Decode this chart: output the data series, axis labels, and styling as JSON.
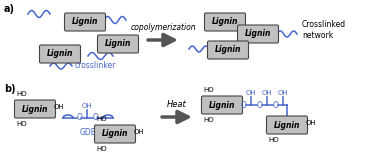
{
  "background_color": "#ffffff",
  "lignin_box_color": "#c0c0c0",
  "lignin_box_edge": "#444444",
  "lignin_text_color": "#000000",
  "blue_color": "#4466cc",
  "black": "#000000",
  "section_a_label": "a)",
  "section_b_label": "b)",
  "copolymerization_label": "copolymerization",
  "crosslinker_label": "crosslinker",
  "crosslinked_label": "Crosslinked\nnetwork",
  "heat_label": "Heat",
  "gde_label": "GDE"
}
